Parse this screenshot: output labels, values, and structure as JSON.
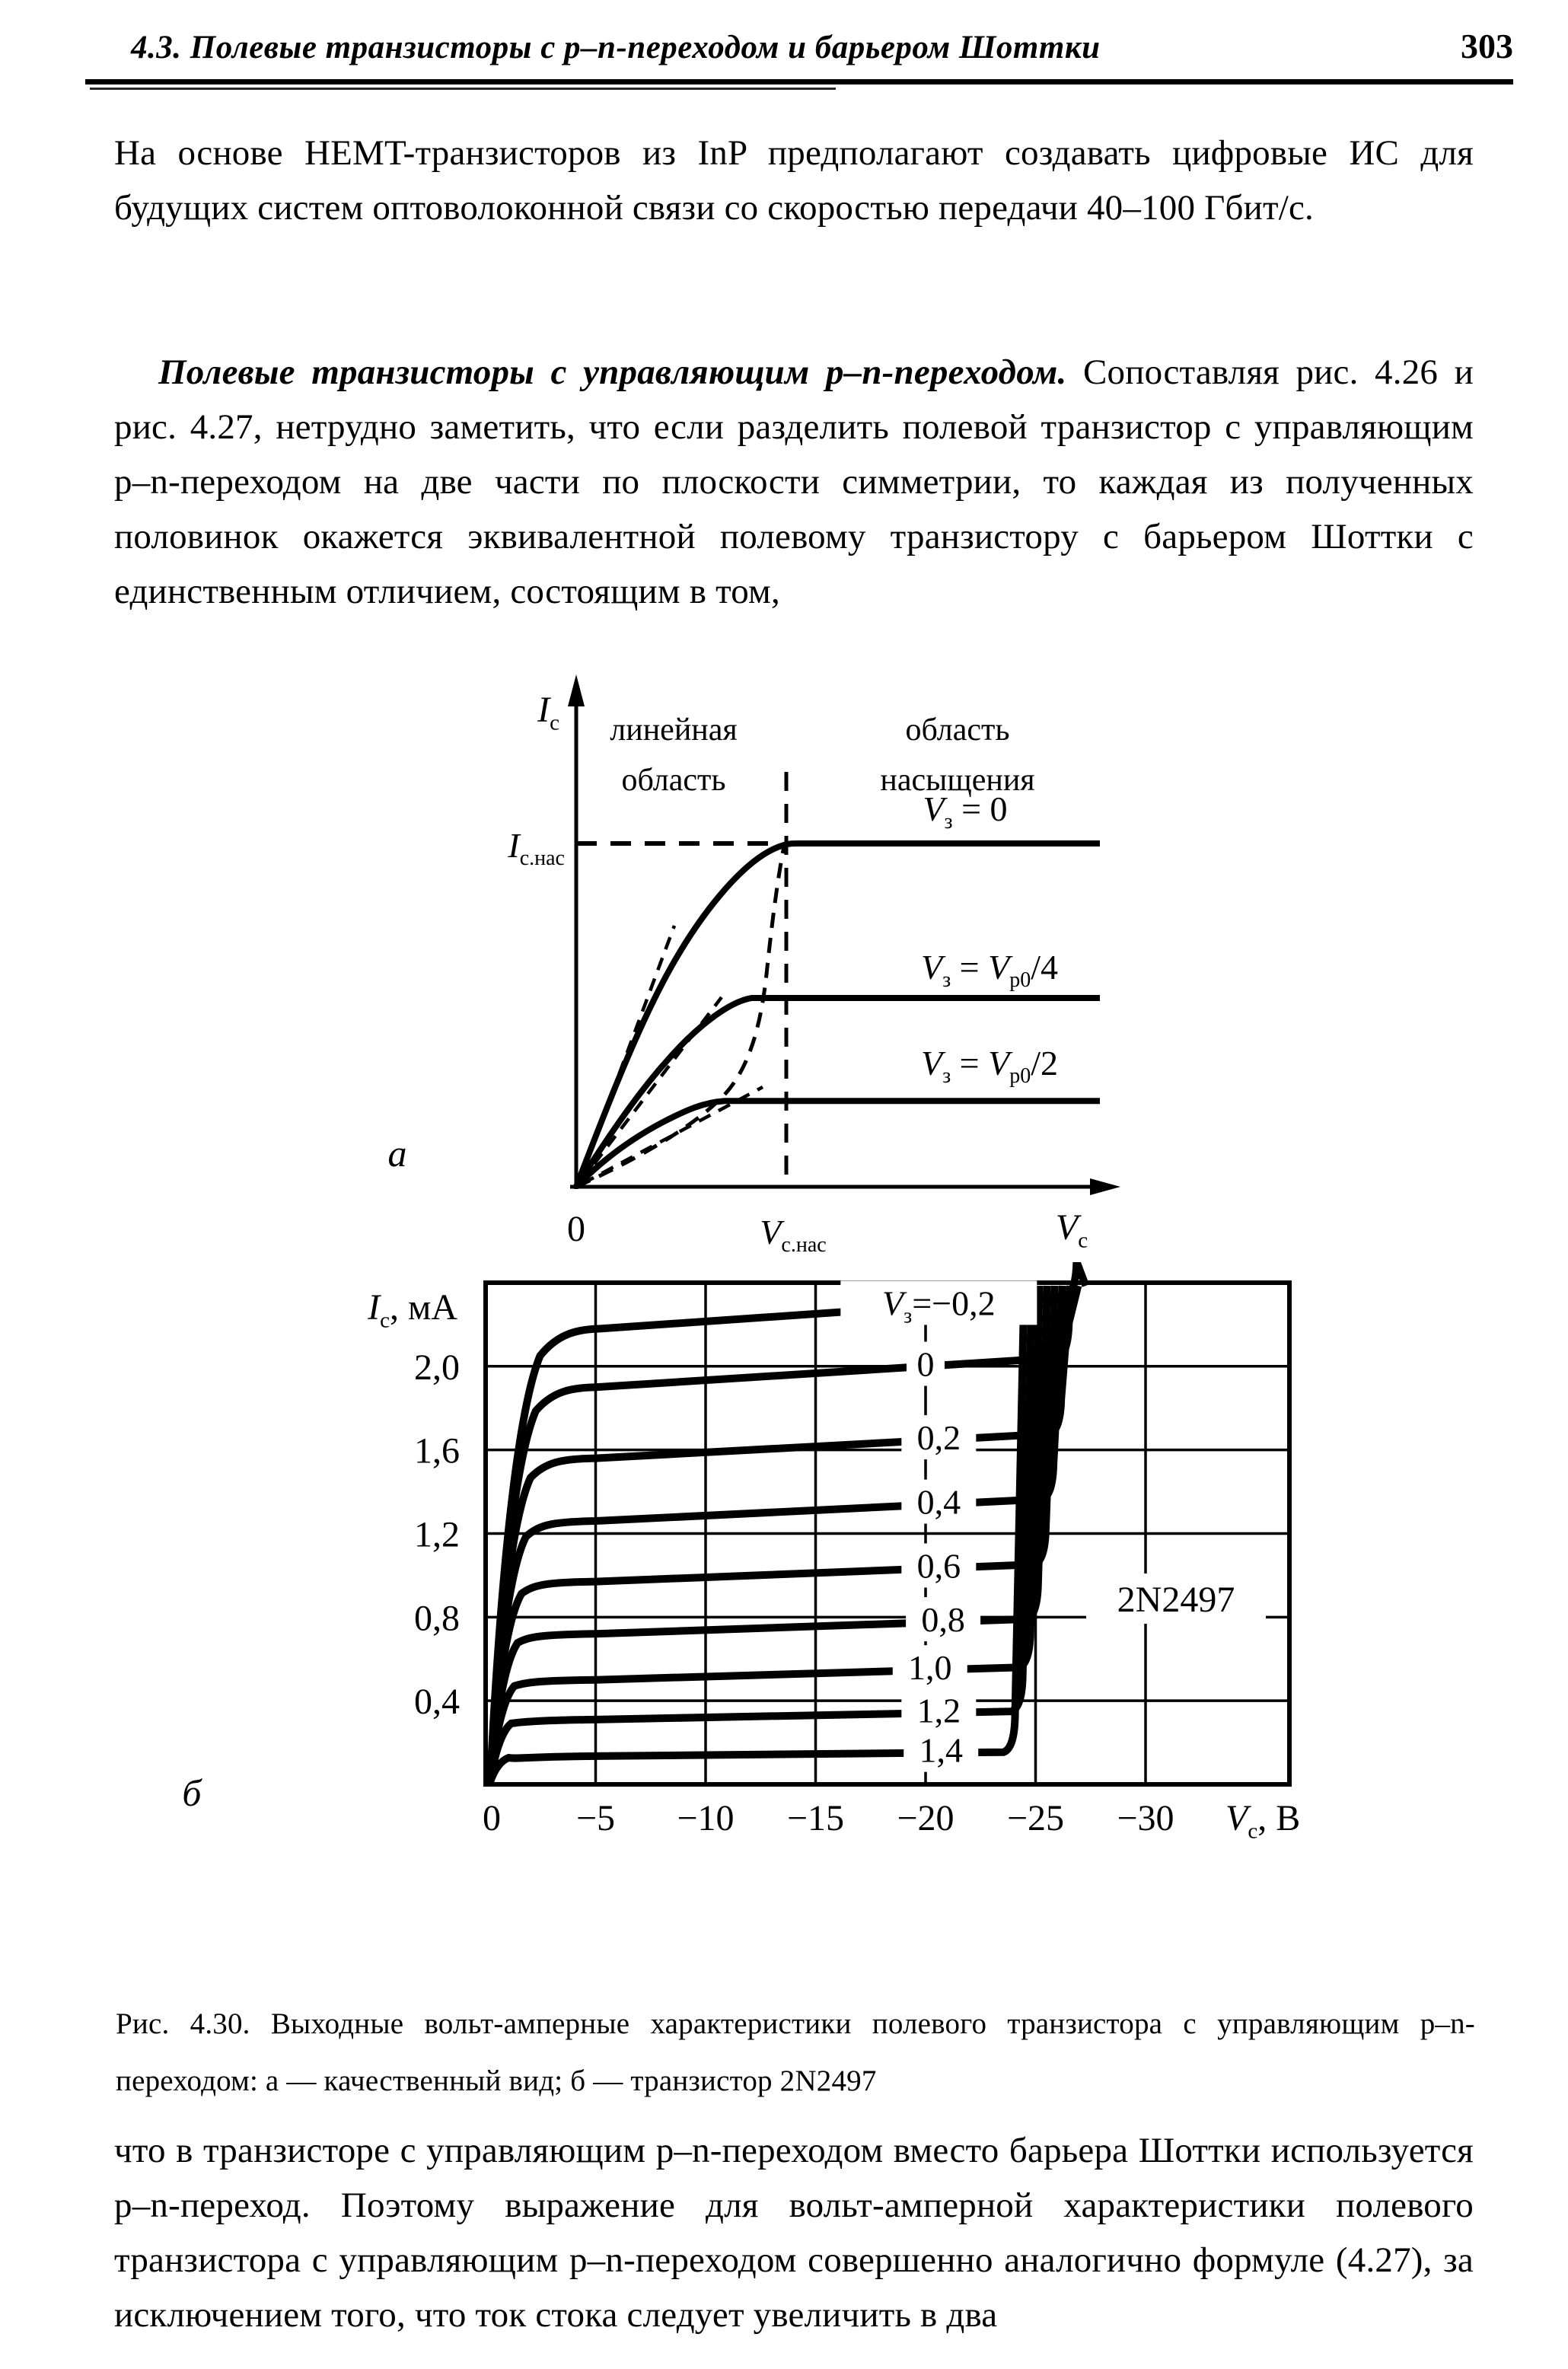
{
  "header": {
    "title": "4.3. Полевые транзисторы с p–n-переходом и барьером Шоттки",
    "page_number": "303"
  },
  "text": {
    "p1": "На основе HEMT-транзисторов из InP предполагают создавать цифровые ИС для будущих систем оптоволоконной связи со скоростью передачи 40–100 Гбит/с.",
    "p2_lead": "Полевые транзисторы с управляющим p–n-переходом.",
    "p2_rest": " Сопоставляя рис. 4.26 и рис. 4.27, нетрудно заметить, что если разделить полевой транзистор с управляющим p–n-переходом на две части по плоскости симметрии, то каждая из полученных половинок окажется эквивалентной полевому транзистору с барьером Шоттки с единственным отличием, состоящим в том,",
    "caption": "Рис. 4.30. Выходные вольт-амперные характеристики полевого транзистора с управляющим p–n-переходом: а — качественный вид; б — транзистор 2N2497",
    "p3": "что в транзисторе с управляющим p–n-переходом вместо барьера Шоттки используется p–n-переход. Поэтому выражение для вольт-амперной характеристики полевого транзистора с управляющим p–n-переходом совершенно аналогично формуле (4.27), за исключением того, что ток стока следует увеличить в два"
  },
  "chart_data": [
    {
      "type": "line",
      "id": "fig-a",
      "panel_label": "а",
      "description": "качественный вид выходных ВАХ полевого транзистора",
      "ylabel_parts": [
        [
          "I",
          "с"
        ]
      ],
      "xlabel_parts": [
        [
          "V",
          "с"
        ]
      ],
      "y_sat_parts": [
        [
          "I",
          "с.нас"
        ]
      ],
      "x_sat_parts": [
        [
          "V",
          "с.нас"
        ]
      ],
      "x_origin_label": "0",
      "region_labels": {
        "linear": [
          "линейная",
          "область"
        ],
        "saturation": [
          "область",
          "насыщения"
        ]
      },
      "axes": {
        "x": "V_с",
        "y": "I_с",
        "grid": false
      },
      "series": [
        {
          "label_parts": [
            [
              "V",
              "з"
            ],
            [
              " = 0"
            ]
          ],
          "sat_level_rel": 1.0
        },
        {
          "label_parts": [
            [
              "V",
              "з"
            ],
            [
              " = "
            ],
            [
              "V",
              "р0"
            ],
            [
              "/4"
            ]
          ],
          "sat_level_rel": 0.55
        },
        {
          "label_parts": [
            [
              "V",
              "з"
            ],
            [
              " = "
            ],
            [
              "V",
              "р0"
            ],
            [
              "/2"
            ]
          ],
          "sat_level_rel": 0.25
        }
      ]
    },
    {
      "type": "line",
      "id": "fig-b",
      "panel_label": "б",
      "device": "2N2497",
      "ylabel_parts": [
        [
          "I",
          "с"
        ],
        [
          ", мА"
        ]
      ],
      "xlabel_parts": [
        [
          "V",
          "с"
        ],
        [
          ", В"
        ]
      ],
      "x_ticks": [
        0,
        -5,
        -10,
        -15,
        -20,
        -25,
        -30
      ],
      "x_tick_labels": [
        "0",
        "−5",
        "−10",
        "−15",
        "−20",
        "−25",
        "−30"
      ],
      "y_ticks": [
        0.4,
        0.8,
        1.2,
        1.6,
        2.0
      ],
      "y_tick_labels": [
        "0,4",
        "0,8",
        "1,2",
        "1,6",
        "2,0"
      ],
      "xlim": [
        0,
        -36.5
      ],
      "ylim": [
        0,
        2.4
      ],
      "grid": true,
      "series": [
        {
          "v3": "−0,2",
          "label_parts": [
            [
              "V",
              "з"
            ],
            [
              "=−0,2"
            ]
          ],
          "i_at_minus5": 2.18,
          "i_at_minus25": 2.32,
          "v_breakdown": -26.9,
          "label_x": -20.6,
          "label_w": 258
        },
        {
          "v3": "0",
          "label_parts": [
            [
              "0"
            ]
          ],
          "i_at_minus5": 1.9,
          "i_at_minus25": 2.03,
          "v_breakdown": -26.55,
          "label_x": -20.0,
          "label_w": 50
        },
        {
          "v3": "0,2",
          "label_parts": [
            [
              "0,2"
            ]
          ],
          "i_at_minus5": 1.56,
          "i_at_minus25": 1.67,
          "v_breakdown": -26.2,
          "label_x": -20.6,
          "label_w": 98
        },
        {
          "v3": "0,4",
          "label_parts": [
            [
              "0,4"
            ]
          ],
          "i_at_minus5": 1.26,
          "i_at_minus25": 1.36,
          "v_breakdown": -25.85,
          "label_x": -20.6,
          "label_w": 98
        },
        {
          "v3": "0,6",
          "label_parts": [
            [
              "0,6"
            ]
          ],
          "i_at_minus5": 0.97,
          "i_at_minus25": 1.05,
          "v_breakdown": -25.5,
          "label_x": -20.6,
          "label_w": 98
        },
        {
          "v3": "0,8",
          "label_parts": [
            [
              "0,8"
            ]
          ],
          "i_at_minus5": 0.72,
          "i_at_minus25": 0.79,
          "v_breakdown": -25.15,
          "label_x": -20.8,
          "label_w": 98
        },
        {
          "v3": "1,0",
          "label_parts": [
            [
              "1,0"
            ]
          ],
          "i_at_minus5": 0.5,
          "i_at_minus25": 0.56,
          "v_breakdown": -24.8,
          "label_x": -20.2,
          "label_w": 98
        },
        {
          "v3": "1,2",
          "label_parts": [
            [
              "1,2"
            ]
          ],
          "i_at_minus5": 0.31,
          "i_at_minus25": 0.35,
          "v_breakdown": -24.45,
          "label_x": -20.6,
          "label_w": 98
        },
        {
          "v3": "1,4",
          "label_parts": [
            [
              "1,4"
            ]
          ],
          "i_at_minus5": 0.135,
          "i_at_minus25": 0.155,
          "v_breakdown": -24.1,
          "label_x": -20.7,
          "label_w": 98
        }
      ]
    }
  ]
}
